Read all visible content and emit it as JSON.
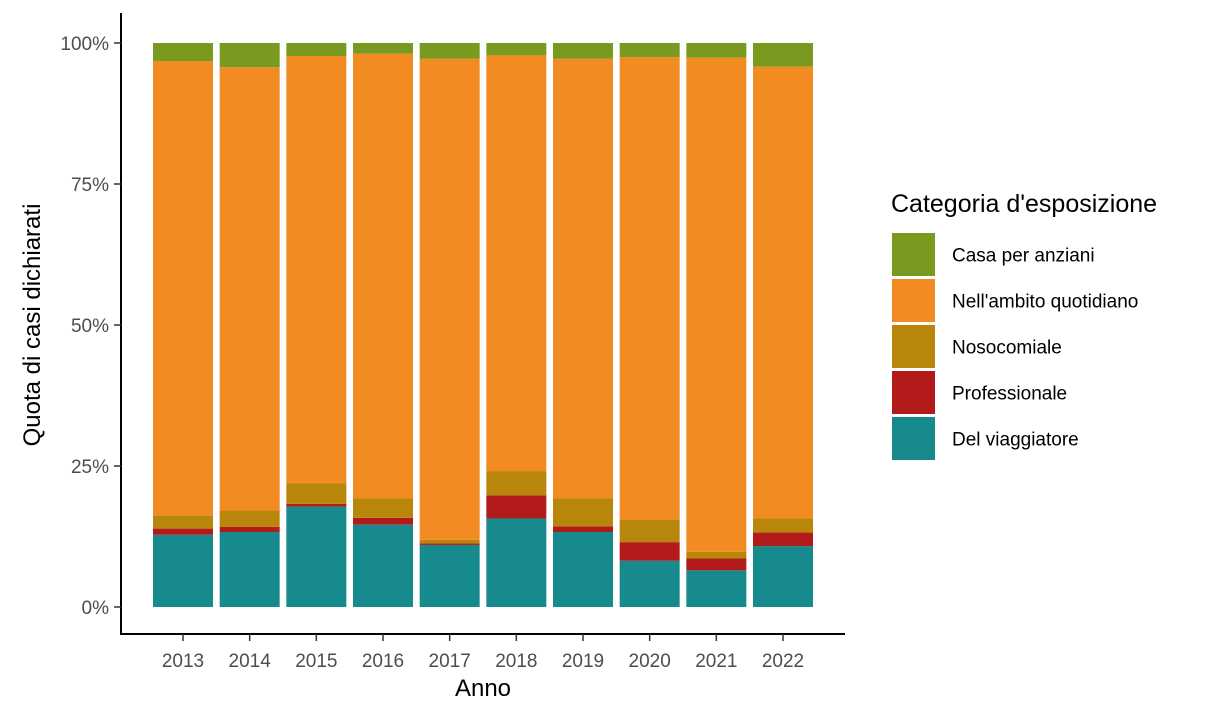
{
  "chart_data": {
    "type": "bar",
    "stacked": true,
    "percent": true,
    "categories": [
      "2013",
      "2014",
      "2015",
      "2016",
      "2017",
      "2018",
      "2019",
      "2020",
      "2021",
      "2022"
    ],
    "series": [
      {
        "name": "Del viaggiatore",
        "color": "#168a8c",
        "values": [
          12.8,
          13.3,
          17.8,
          14.6,
          11.0,
          15.7,
          13.3,
          8.2,
          6.5,
          10.8
        ]
      },
      {
        "name": "Professionale",
        "color": "#b21b1a",
        "values": [
          1.1,
          0.9,
          0.5,
          1.2,
          0.3,
          4.1,
          1.0,
          3.3,
          2.1,
          2.4
        ]
      },
      {
        "name": "Nosocomiale",
        "color": "#b8860b",
        "values": [
          2.3,
          2.9,
          3.6,
          3.5,
          0.6,
          4.3,
          5.0,
          4.0,
          1.2,
          2.5
        ]
      },
      {
        "name": "Nell'ambito quotidiano",
        "color": "#f28b22",
        "values": [
          80.6,
          78.6,
          75.8,
          78.8,
          85.3,
          73.7,
          77.9,
          82.0,
          87.6,
          80.1
        ]
      },
      {
        "name": "Casa per anziani",
        "color": "#7a9a1f",
        "values": [
          3.2,
          4.3,
          2.3,
          1.9,
          2.8,
          2.2,
          2.8,
          2.5,
          2.6,
          4.2
        ]
      }
    ],
    "legend_order": [
      "Casa per anziani",
      "Nell'ambito quotidiano",
      "Nosocomiale",
      "Professionale",
      "Del viaggiatore"
    ],
    "xlabel": "Anno",
    "ylabel": "Quota di casi dichiarati",
    "legend_title": "Categoria d'esposizione",
    "legend_position": "right",
    "yticks": [
      0,
      25,
      50,
      75,
      100
    ],
    "ytick_labels": [
      "0%",
      "25%",
      "50%",
      "75%",
      "100%"
    ],
    "ylim": [
      0,
      100
    ],
    "grid": false
  }
}
